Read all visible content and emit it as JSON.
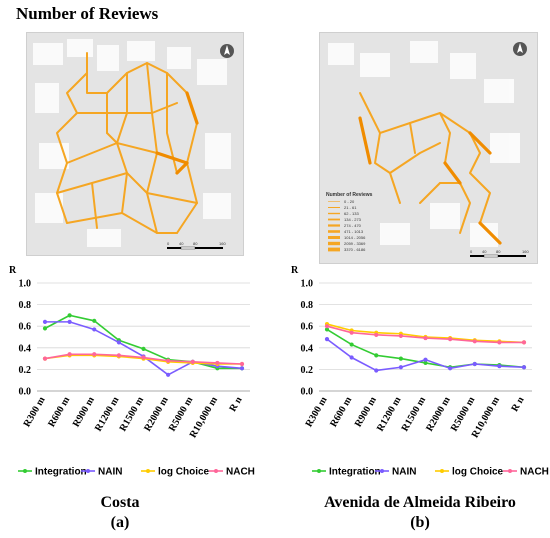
{
  "title": "Number of Reviews",
  "colors": {
    "integration": "#33cc33",
    "nain": "#7a5cff",
    "log_choice": "#ffcc00",
    "nach": "#ff6699",
    "street": "#f5a623",
    "map_bg": "#e4e4e4"
  },
  "map_b_legend": {
    "title": "Number of Reviews",
    "items": [
      "0 - 20",
      "21 - 61",
      "62 - 133",
      "134 - 273",
      "274 - 470",
      "471 - 1013",
      "1014 - 2056",
      "2059 - 3369",
      "3370 - 6186"
    ]
  },
  "scale_bar": {
    "labels": [
      "0",
      "40",
      "80",
      "160"
    ]
  },
  "chart_data": [
    {
      "type": "line",
      "ylabel": "R",
      "ylim": [
        0,
        1.0
      ],
      "yticks": [
        "0.0",
        "0.2",
        "0.4",
        "0.6",
        "0.8",
        "1.0"
      ],
      "categories": [
        "R300 m",
        "R600 m",
        "R900 m",
        "R1200 m",
        "R1500 m",
        "R2000 m",
        "R5000 m",
        "R10,000 m",
        "R n"
      ],
      "series": [
        {
          "name": "Integration",
          "color": "#33cc33",
          "values": [
            0.58,
            0.7,
            0.65,
            0.47,
            0.39,
            0.29,
            0.27,
            0.21,
            0.21
          ]
        },
        {
          "name": "NAIN",
          "color": "#7a5cff",
          "values": [
            0.64,
            0.64,
            0.57,
            0.45,
            0.32,
            0.15,
            0.27,
            0.23,
            0.21
          ]
        },
        {
          "name": "log Choice",
          "color": "#ffcc00",
          "values": [
            0.3,
            0.33,
            0.33,
            0.32,
            0.3,
            0.27,
            0.26,
            0.25,
            0.25
          ]
        },
        {
          "name": "NACH",
          "color": "#ff6699",
          "values": [
            0.3,
            0.34,
            0.34,
            0.33,
            0.31,
            0.28,
            0.27,
            0.26,
            0.25
          ]
        }
      ],
      "caption": "Costa",
      "sublabel": "(a)"
    },
    {
      "type": "line",
      "ylabel": "R",
      "ylim": [
        0,
        1.0
      ],
      "yticks": [
        "0.0",
        "0.2",
        "0.4",
        "0.6",
        "0.8",
        "1.0"
      ],
      "categories": [
        "R300 m",
        "R600 m",
        "R900 m",
        "R1200 m",
        "R1500 m",
        "R2000 m",
        "R5000 m",
        "R10,000 m",
        "R n"
      ],
      "series": [
        {
          "name": "Integration",
          "color": "#33cc33",
          "values": [
            0.57,
            0.43,
            0.33,
            0.3,
            0.26,
            0.22,
            0.25,
            0.24,
            0.22
          ]
        },
        {
          "name": "NAIN",
          "color": "#7a5cff",
          "values": [
            0.48,
            0.31,
            0.19,
            0.22,
            0.29,
            0.21,
            0.25,
            0.23,
            0.22
          ]
        },
        {
          "name": "log Choice",
          "color": "#ffcc00",
          "values": [
            0.62,
            0.56,
            0.54,
            0.53,
            0.5,
            0.49,
            0.47,
            0.46,
            0.45
          ]
        },
        {
          "name": "NACH",
          "color": "#ff6699",
          "values": [
            0.6,
            0.54,
            0.52,
            0.51,
            0.49,
            0.48,
            0.46,
            0.45,
            0.45
          ]
        }
      ],
      "caption": "Avenida de Almeida Ribeiro",
      "sublabel": "(b)"
    }
  ]
}
